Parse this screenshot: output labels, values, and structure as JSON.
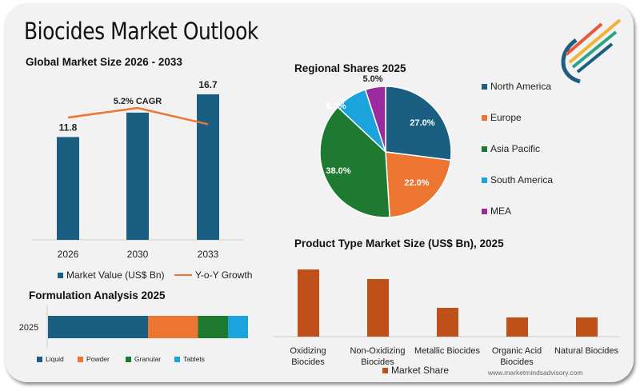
{
  "title": "Biocides Market Outlook",
  "website": "www.marketmindsadvisory.com",
  "colors": {
    "navy": "#1a5f82",
    "orange": "#ed7532",
    "green": "#1e7a30",
    "cyan": "#1aa3dc",
    "purple": "#9a2a9e",
    "rust": "#c0501a",
    "line": "#ed7532"
  },
  "chart_data": [
    {
      "type": "bar",
      "title": "Global Market Size 2026 - 2033",
      "categories": [
        "2026",
        "2030",
        "2033"
      ],
      "series": [
        {
          "name": "Market Value (US$ Bn)",
          "values": [
            11.8,
            14.6,
            16.7
          ],
          "labels": [
            "11.8",
            "",
            "16.7"
          ]
        },
        {
          "name": "Y-o-Y Growth",
          "type": "line",
          "values": [
            5.0,
            6.0,
            4.3
          ]
        }
      ],
      "annotation": "5.2% CAGR",
      "ylim": [
        0,
        18
      ]
    },
    {
      "type": "pie",
      "title": "Regional Shares 2025",
      "categories": [
        "North America",
        "Europe",
        "Asia Pacific",
        "South America",
        "MEA"
      ],
      "values": [
        27.0,
        22.0,
        38.0,
        8.0,
        5.0
      ],
      "labels": [
        "27.0%",
        "22.0%",
        "38.0%",
        "8.0%",
        "5.0%"
      ],
      "legend": "right"
    },
    {
      "type": "bar",
      "title": "Formulation Analysis 2025",
      "stacked": true,
      "orientation": "horizontal",
      "categories": [
        "2025"
      ],
      "series": [
        {
          "name": "Liquid",
          "values": [
            50
          ]
        },
        {
          "name": "Powder",
          "values": [
            25
          ]
        },
        {
          "name": "Granular",
          "values": [
            15
          ]
        },
        {
          "name": "Tablets",
          "values": [
            10
          ]
        }
      ],
      "legend": "bottom"
    },
    {
      "type": "bar",
      "title": "Product Type Market Size (US$ Bn), 2025",
      "categories": [
        "Oxidizing Biocides",
        "Non-Oxidizing Biocides",
        "Metallic Biocides",
        "Organic Acid Biocides",
        "Natural Biocides"
      ],
      "series": [
        {
          "name": "Market Share",
          "values": [
            35,
            30,
            15,
            10,
            10
          ]
        }
      ],
      "legend": "bottom"
    }
  ]
}
